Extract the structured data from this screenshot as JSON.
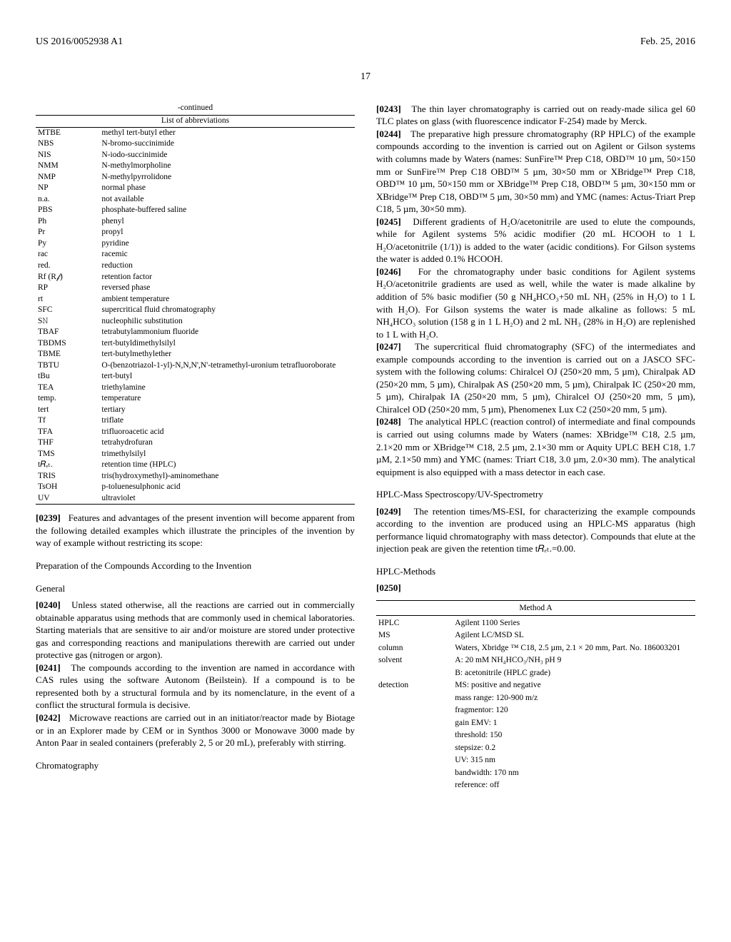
{
  "page": {
    "pub_left": "US 2016/0052938 A1",
    "pub_right": "Feb. 25, 2016",
    "page_number": "17",
    "colors": {
      "text": "#000000",
      "background": "#ffffff",
      "rule": "#000000"
    },
    "typography": {
      "body_family": "Times New Roman",
      "body_size_pt": 10,
      "small_size_pt": 8.5
    }
  },
  "continued_label": "-continued",
  "abbrev_table": {
    "caption": "List of abbreviations",
    "rows": [
      [
        "MTBE",
        "methyl tert-butyl ether"
      ],
      [
        "NBS",
        "N-bromo-succinimide"
      ],
      [
        "NIS",
        "N-iodo-succinimide"
      ],
      [
        "NMM",
        "N-methylmorpholine"
      ],
      [
        "NMP",
        "N-methylpyrrolidone"
      ],
      [
        "NP",
        "normal phase"
      ],
      [
        "n.a.",
        "not available"
      ],
      [
        "PBS",
        "phosphate-buffered saline"
      ],
      [
        "Ph",
        "phenyl"
      ],
      [
        "Pr",
        "propyl"
      ],
      [
        "Py",
        "pyridine"
      ],
      [
        "rac",
        "racemic"
      ],
      [
        "red.",
        "reduction"
      ],
      [
        "Rf (R𝒻)",
        "retention factor"
      ],
      [
        "RP",
        "reversed phase"
      ],
      [
        "rt",
        "ambient temperature"
      ],
      [
        "SFC",
        "supercritical fluid chromatography"
      ],
      [
        "S𝙽",
        "nucleophilic substitution"
      ],
      [
        "TBAF",
        "tetrabutylammonium fluoride"
      ],
      [
        "TBDMS",
        "tert-butyldimethylsilyl"
      ],
      [
        "TBME",
        "tert-butylmethylether"
      ],
      [
        "TBTU",
        "O-(benzotriazol-1-yl)-N,N,N',N'-tetramethyl-uronium tetrafluoroborate"
      ],
      [
        "tBu",
        "tert-butyl"
      ],
      [
        "TEA",
        "triethylamine"
      ],
      [
        "temp.",
        "temperature"
      ],
      [
        "tert",
        "tertiary"
      ],
      [
        "Tf",
        "triflate"
      ],
      [
        "TFA",
        "trifluoroacetic acid"
      ],
      [
        "THF",
        "tetrahydrofuran"
      ],
      [
        "TMS",
        "trimethylsilyl"
      ],
      [
        "t𝑅ₑₜ.",
        "retention time (HPLC)"
      ],
      [
        "TRIS",
        "tris(hydroxymethyl)-aminomethane"
      ],
      [
        "TsOH",
        "p-toluenesulphonic acid"
      ],
      [
        "UV",
        "ultraviolet"
      ]
    ],
    "col_widths_pct": [
      20,
      80
    ],
    "font_size_pt": 8.5
  },
  "paras": {
    "p0239": "Features and advantages of the present invention will become apparent from the following detailed examples which illustrate the principles of the invention by way of example without restricting its scope:",
    "h_prep": "Preparation of the Compounds According to the Invention",
    "h_general": "General",
    "p0240": "Unless stated otherwise, all the reactions are carried out in commercially obtainable apparatus using methods that are commonly used in chemical laboratories. Starting materials that are sensitive to air and/or moisture are stored under protective gas and corresponding reactions and manipulations therewith are carried out under protective gas (nitrogen or argon).",
    "p0241": "The compounds according to the invention are named in accordance with CAS rules using the software Autonom (Beilstein). If a compound is to be represented both by a structural formula and by its nomenclature, in the event of a conflict the structural formula is decisive.",
    "p0242": "Microwave reactions are carried out in an initiator/reactor made by Biotage or in an Explorer made by CEM or in Synthos 3000 or Monowave 3000 made by Anton Paar in sealed containers (preferably 2, 5 or 20 mL), preferably with stirring.",
    "h_chrom": "Chromatography",
    "p0243": "The thin layer chromatography is carried out on ready-made silica gel 60 TLC plates on glass (with fluorescence indicator F-254) made by Merck.",
    "p0244": "The preparative high pressure chromatography (RP HPLC) of the example compounds according to the invention is carried out on Agilent or Gilson systems with columns made by Waters (names: SunFire™ Prep C18, OBD™ 10 µm, 50×150 mm or SunFire™ Prep C18 OBD™ 5 µm, 30×50 mm or XBridge™ Prep C18, OBD™ 10 µm, 50×150 mm or XBridge™ Prep C18, OBD™ 5 µm, 30×150 mm or XBridge™ Prep C18, OBD™ 5 µm, 30×50 mm) and YMC (names: Actus-Triart Prep C18, 5 µm, 30×50 mm).",
    "p0245": "Different gradients of H₂O/acetonitrile are used to elute the compounds, while for Agilent systems 5% acidic modifier (20 mL HCOOH to 1 L H₂O/acetonitrile (1/1)) is added to the water (acidic conditions). For Gilson systems the water is added 0.1% HCOOH.",
    "p0246": "For the chromatography under basic conditions for Agilent systems H₂O/acetonitrile gradients are used as well, while the water is made alkaline by addition of 5% basic modifier (50 g NH₄HCO₃+50 mL NH₃ (25% in H₂O) to 1 L with H₂O). For Gilson systems the water is made alkaline as follows: 5 mL NH₄HCO₃ solution (158 g in 1 L H₂O) and 2 mL NH₃ (28% in H₂O) are replenished to 1 L with H₂O.",
    "p0247": "The supercritical fluid chromatography (SFC) of the intermediates and example compounds according to the invention is carried out on a JASCO SFC-system with the following colums: Chiralcel OJ (250×20 mm, 5 µm), Chiralpak AD (250×20 mm, 5 µm), Chiralpak AS (250×20 mm, 5 µm), Chiralpak IC (250×20 mm, 5 µm), Chiralpak IA (250×20 mm, 5 µm), Chiralcel OJ (250×20 mm, 5 µm), Chiralcel OD (250×20 mm, 5 µm), Phenomenex Lux C2 (250×20 mm, 5 µm).",
    "p0248": "The analytical HPLC (reaction control) of intermediate and final compounds is carried out using columns made by Waters (names: XBridge™ C18, 2.5 µm, 2.1×20 mm or XBridge™ C18, 2.5 µm, 2.1×30 mm or Aquity UPLC BEH C18, 1.7 µM, 2.1×50 mm) and YMC (names: Triart C18, 3.0 µm, 2.0×30 mm). The analytical equipment is also equipped with a mass detector in each case.",
    "h_hplcms": "HPLC-Mass Spectroscopy/UV-Spectrometry",
    "p0249": "The retention times/MS-ESI, for characterizing the example compounds according to the invention are produced using an HPLC-MS apparatus (high performance liquid chromatography with mass detector). Compounds that elute at the injection peak are given the retention time t𝑅ₑₜ.=0.00.",
    "h_hplcmethods": "HPLC-Methods",
    "p0250": ""
  },
  "method_table": {
    "caption": "Method A",
    "rows": [
      [
        "HPLC",
        "Agilent 1100 Series"
      ],
      [
        "MS",
        "Agilent LC/MSD SL"
      ],
      [
        "column",
        "Waters, Xbridge ™ C18, 2.5 µm, 2.1 × 20 mm, Part. No. 186003201"
      ],
      [
        "solvent",
        "A: 20 mM NH₄HCO₃/NH₃ pH 9\nB: acetonitrile (HPLC grade)"
      ],
      [
        "detection",
        "MS: positive and negative\nmass range: 120-900 m/z\nfragmentor: 120\ngain EMV: 1\nthreshold: 150\nstepsize: 0.2\nUV: 315 nm\nbandwidth: 170 nm\nreference: off"
      ]
    ],
    "col_widths_pct": [
      24,
      76
    ],
    "font_size_pt": 8.5
  }
}
